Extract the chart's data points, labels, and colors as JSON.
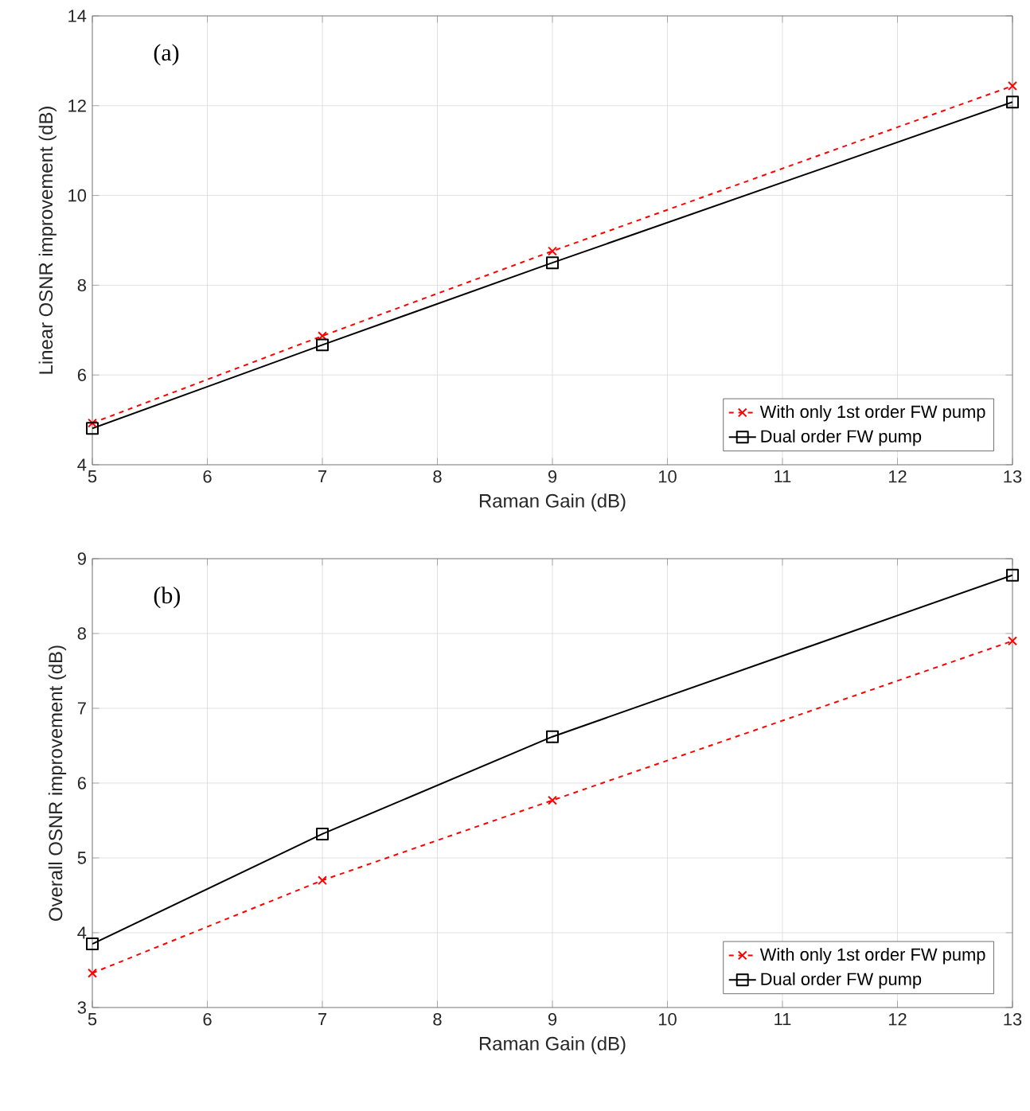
{
  "chart_data": [
    {
      "type": "line",
      "annotations": [
        "(a)"
      ],
      "xlabel": "Raman Gain (dB)",
      "ylabel": "Linear OSNR improvement (dB)",
      "x": [
        5,
        7,
        9,
        13
      ],
      "xlim": [
        5,
        13
      ],
      "xticks": [
        5,
        6,
        7,
        8,
        9,
        10,
        11,
        12,
        13
      ],
      "ylim": [
        4,
        14
      ],
      "yticks": [
        4,
        6,
        8,
        10,
        12,
        14
      ],
      "grid": true,
      "legend": "bottom right",
      "series": [
        {
          "name": "With only 1st order FW pump",
          "color": "#ff0000",
          "marker": "cross",
          "line_style": "dashed",
          "values": [
            4.93,
            6.87,
            8.76,
            12.44
          ]
        },
        {
          "name": "Dual order FW pump",
          "color": "#000000",
          "marker": "square",
          "line_style": "solid",
          "values": [
            4.81,
            6.67,
            8.5,
            12.08
          ]
        }
      ]
    },
    {
      "type": "line",
      "annotations": [
        "(b)"
      ],
      "xlabel": "Raman Gain (dB)",
      "ylabel": "Overall OSNR improvement (dB)",
      "x": [
        5,
        7,
        9,
        13
      ],
      "xlim": [
        5,
        13
      ],
      "xticks": [
        5,
        6,
        7,
        8,
        9,
        10,
        11,
        12,
        13
      ],
      "ylim": [
        3,
        9
      ],
      "yticks": [
        3,
        4,
        5,
        6,
        7,
        8,
        9
      ],
      "grid": true,
      "legend": "bottom right",
      "series": [
        {
          "name": "With only 1st order FW pump",
          "color": "#ff0000",
          "marker": "cross",
          "line_style": "dashed",
          "values": [
            3.46,
            4.7,
            5.77,
            7.9
          ]
        },
        {
          "name": "Dual order FW pump",
          "color": "#000000",
          "marker": "square",
          "line_style": "solid",
          "values": [
            3.85,
            5.32,
            6.62,
            8.78
          ]
        }
      ]
    }
  ]
}
